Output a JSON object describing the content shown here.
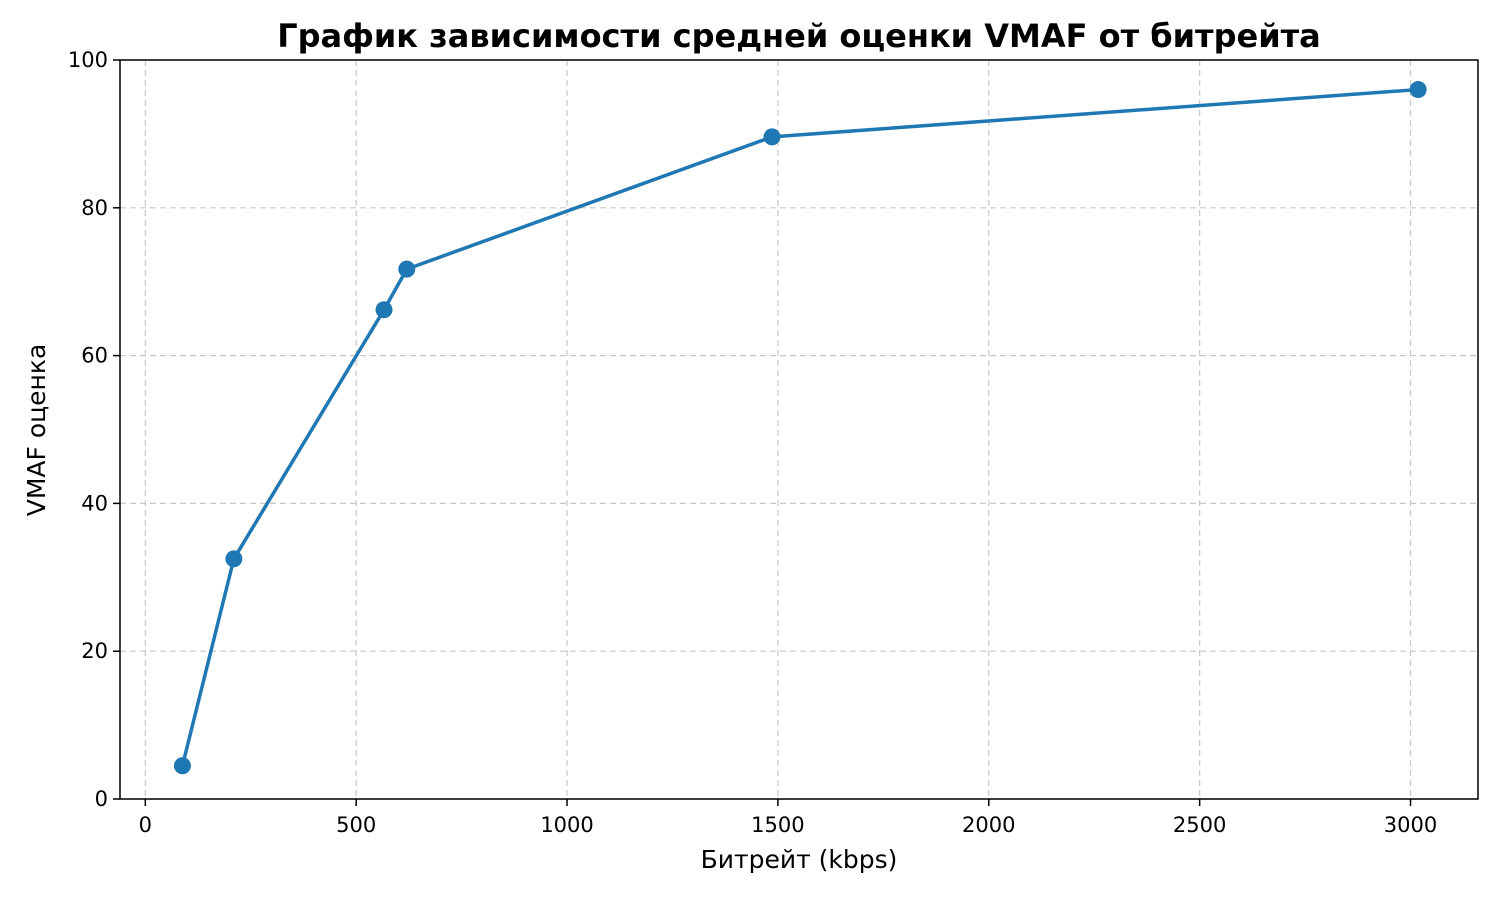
{
  "chart_data": {
    "type": "line",
    "title": "График зависимости средней оценки VMAF от битрейта",
    "xlabel": "Битрейт (kbps)",
    "ylabel": "VMAF оценка",
    "xlim": [
      -60,
      3160
    ],
    "ylim": [
      0,
      100
    ],
    "xticks": [
      0,
      500,
      1000,
      1500,
      2000,
      2500,
      3000
    ],
    "yticks": [
      0,
      20,
      40,
      60,
      80,
      100
    ],
    "grid": true,
    "color": "#1f77b4",
    "series": [
      {
        "x": [
          88,
          210,
          566,
          620,
          1486,
          3018
        ],
        "y": [
          4.5,
          32.5,
          66.2,
          71.7,
          89.6,
          96.0
        ]
      }
    ]
  }
}
